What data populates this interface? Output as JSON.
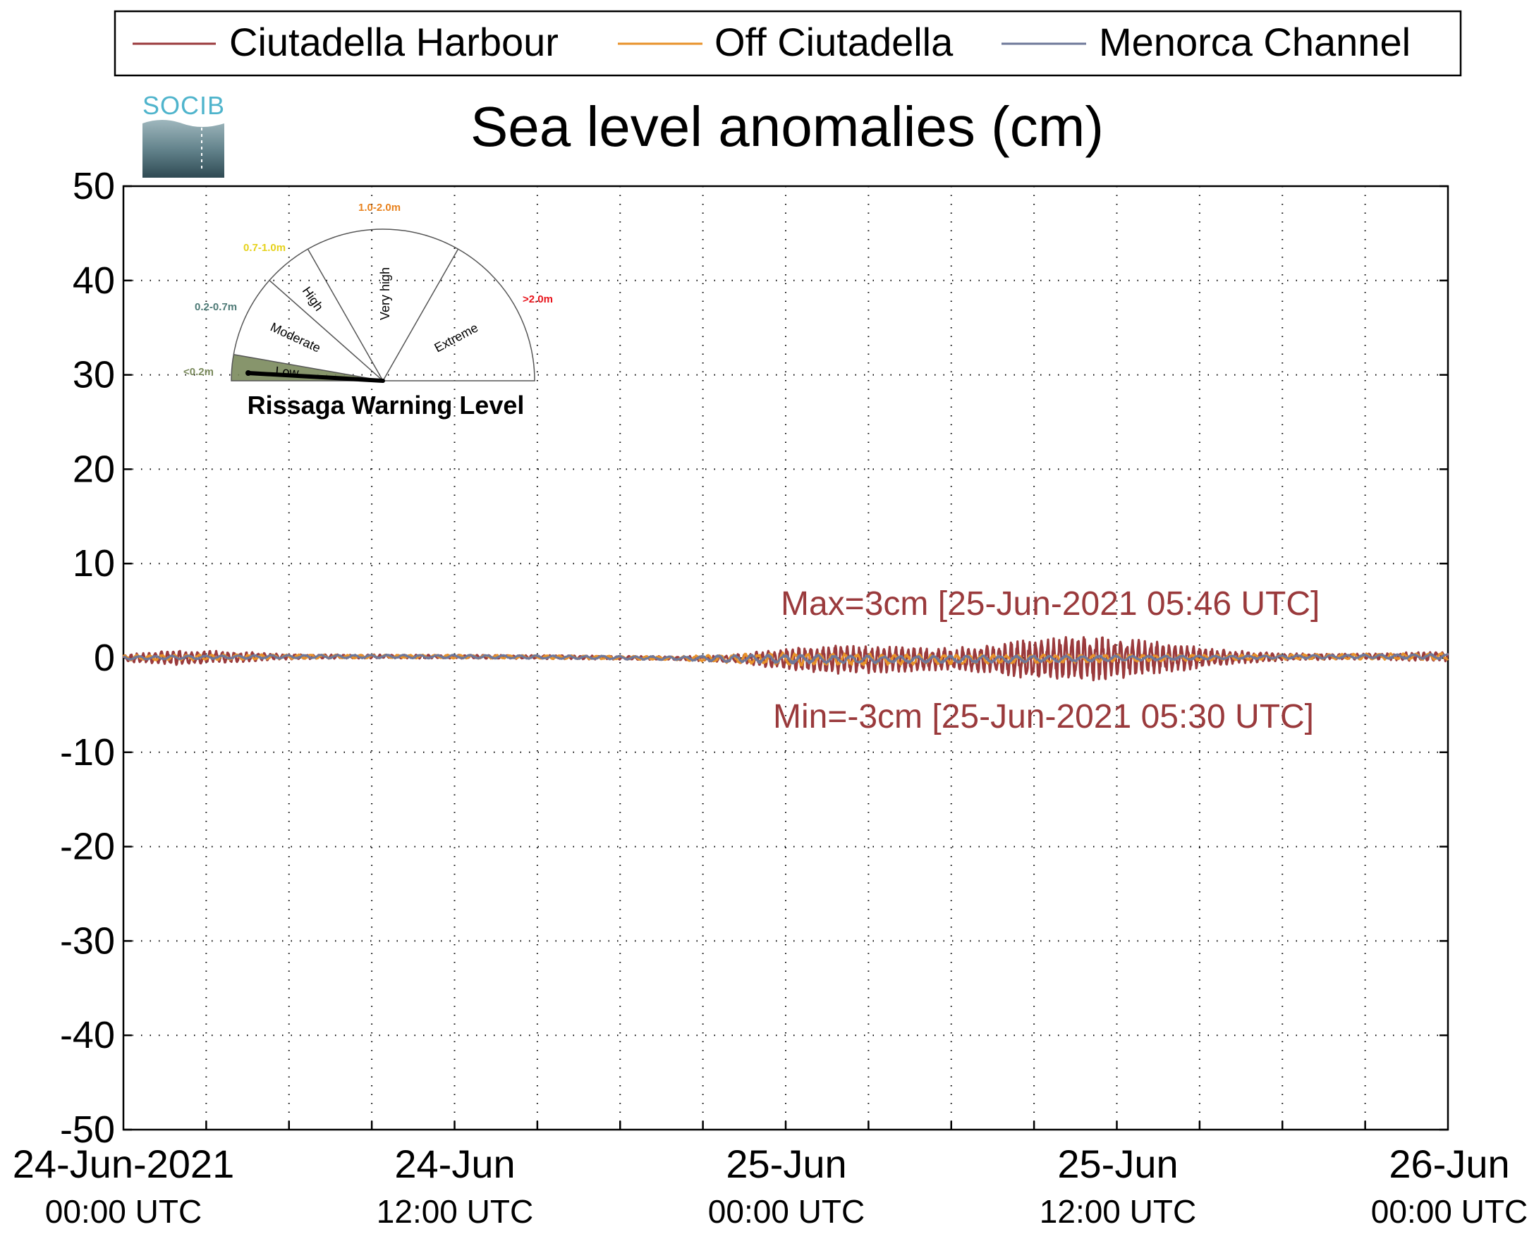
{
  "legend": {
    "placement": "top",
    "entries": [
      {
        "label": "Ciutadella Harbour",
        "color": "#9a3a3c"
      },
      {
        "label": "Off Ciutadella",
        "color": "#e8922a"
      },
      {
        "label": "Menorca Channel",
        "color": "#6e7899"
      }
    ]
  },
  "logo": {
    "text": "SOCIB"
  },
  "warning_gauge": {
    "title": "Rissaga Warning Level",
    "level_value": "Low",
    "sectors": [
      {
        "name": "Low",
        "range": "<0.2m",
        "color": "#7a8a5c"
      },
      {
        "name": "Moderate",
        "range": "0.2-0.7m",
        "color": "#4e7a76"
      },
      {
        "name": "High",
        "range": "0.7-1.0m",
        "color": "#e6d21c"
      },
      {
        "name": "Very high",
        "range": "1.0-2.0m",
        "color": "#e8821e"
      },
      {
        "name": "Extreme",
        "range": ">2.0m",
        "color": "#e8141c"
      }
    ]
  },
  "annotations": {
    "max": "Max=3cm [25-Jun-2021 05:46 UTC]",
    "min": "Min=-3cm [25-Jun-2021 05:30 UTC]",
    "color": "#9a3a3c"
  },
  "chart_data": {
    "type": "line",
    "title": "Sea level anomalies (cm)",
    "xlabel": "",
    "ylabel": "",
    "ylim": [
      -50,
      50
    ],
    "yticks": [
      "50",
      "40",
      "30",
      "20",
      "10",
      "0",
      "-10",
      "-20",
      "-30",
      "-40",
      "-50"
    ],
    "xlim": [
      "2021-06-24 00:00",
      "2021-06-26 00:00"
    ],
    "xticks": [
      {
        "line1": "24-Jun-2021",
        "line2": "00:00 UTC"
      },
      {
        "line1": "24-Jun",
        "line2": "12:00 UTC"
      },
      {
        "line1": "25-Jun",
        "line2": "00:00 UTC"
      },
      {
        "line1": "25-Jun",
        "line2": "12:00 UTC"
      },
      {
        "line1": "26-Jun",
        "line2": "00:00 UTC"
      }
    ],
    "grid": true,
    "series": [
      {
        "name": "Ciutadella Harbour",
        "color": "#9a3a3c",
        "envelope_hours": [
          0,
          2,
          4,
          6,
          8,
          10,
          12,
          14,
          16,
          18,
          20,
          22,
          24,
          26,
          28,
          30,
          32,
          34,
          36,
          38,
          40,
          42,
          44,
          46,
          48
        ],
        "envelope_cm": [
          0.4,
          0.8,
          0.6,
          0.3,
          0.2,
          0.2,
          0.2,
          0.2,
          0.2,
          0.2,
          0.2,
          0.4,
          1.2,
          1.6,
          1.4,
          1.2,
          1.8,
          2.6,
          2.2,
          1.6,
          0.8,
          0.4,
          0.3,
          0.4,
          0.6
        ]
      },
      {
        "name": "Off Ciutadella",
        "color": "#e8922a",
        "envelope_hours": [
          0,
          4,
          8,
          12,
          16,
          20,
          22,
          24,
          28,
          32,
          36,
          40,
          44,
          48
        ],
        "envelope_cm": [
          0.3,
          0.3,
          0.2,
          0.2,
          0.2,
          0.2,
          0.5,
          0.7,
          0.6,
          0.5,
          0.4,
          0.3,
          0.3,
          0.4
        ]
      },
      {
        "name": "Menorca Channel",
        "color": "#6e7899",
        "envelope_hours": [
          0,
          4,
          8,
          12,
          16,
          20,
          22,
          24,
          28,
          32,
          36,
          40,
          44,
          48
        ],
        "envelope_cm": [
          0.2,
          0.2,
          0.2,
          0.2,
          0.2,
          0.2,
          0.4,
          0.5,
          0.4,
          0.4,
          0.3,
          0.2,
          0.2,
          0.3
        ]
      }
    ]
  }
}
